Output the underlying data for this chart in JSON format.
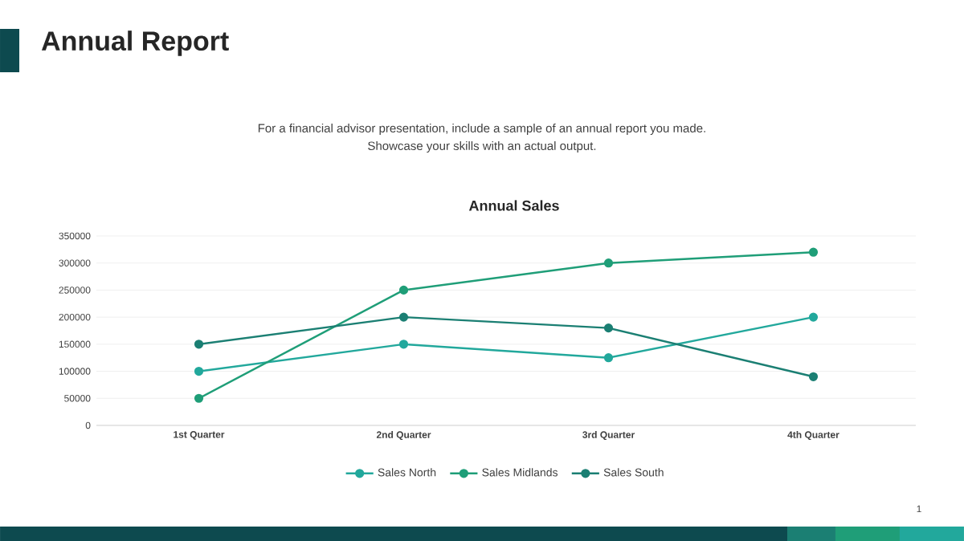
{
  "chart_data": {
    "type": "line",
    "title": "Annual Sales",
    "annotations": [
      "Annual Report",
      "For a financial advisor presentation, include a sample of an annual report you made.",
      "Showcase your skills with an actual output.",
      "1"
    ],
    "categories": [
      "1st Quarter",
      "2nd Quarter",
      "3rd Quarter",
      "4th Quarter"
    ],
    "series": [
      {
        "name": "Sales North",
        "color": "#22a89c",
        "values": [
          100000,
          150000,
          125000,
          200000
        ]
      },
      {
        "name": "Sales Midlands",
        "color": "#1f9e78",
        "values": [
          50000,
          250000,
          300000,
          320000
        ]
      },
      {
        "name": "Sales South",
        "color": "#1b7f73",
        "values": [
          150000,
          200000,
          180000,
          90000
        ]
      }
    ],
    "ylim": [
      0,
      350000
    ],
    "yticks": [
      0,
      50000,
      100000,
      150000,
      200000,
      250000,
      300000,
      350000
    ],
    "grid": "y",
    "legend": "bottom",
    "marker": "circle",
    "line_style": "solid"
  }
}
